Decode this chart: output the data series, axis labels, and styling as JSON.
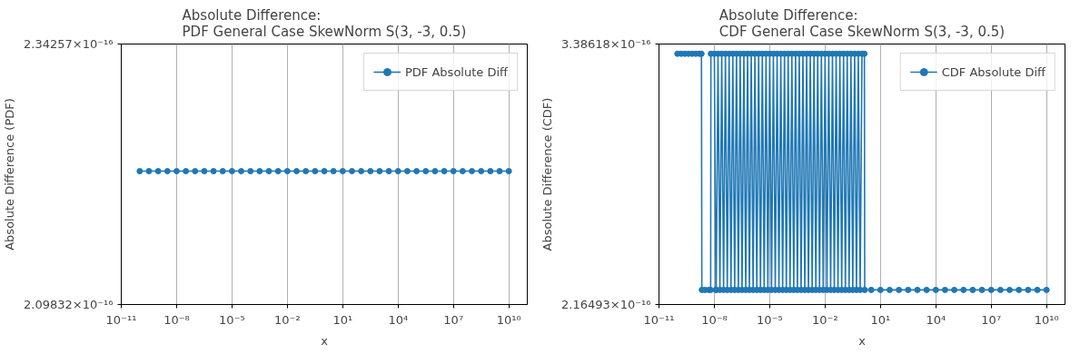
{
  "chart_data": [
    {
      "type": "line",
      "title": "Absolute Difference:\nPDF General Case SkewNorm S(3, -3, 0.5)",
      "xlabel": "x",
      "ylabel": "Absolute Difference (PDF)",
      "log": "xy",
      "grid": "x",
      "legend": "top right",
      "marker": "circle",
      "line_style": "solid",
      "xlim": [
        1e-11,
        100000000000.0
      ],
      "xticks": [
        {
          "value": 1e-11,
          "label": "10⁻¹¹"
        },
        {
          "value": 1e-08,
          "label": "10⁻⁸"
        },
        {
          "value": 1e-05,
          "label": "10⁻⁵"
        },
        {
          "value": 0.01,
          "label": "10⁻²"
        },
        {
          "value": 10,
          "label": "10¹"
        },
        {
          "value": 10000,
          "label": "10⁴"
        },
        {
          "value": 10000000.0,
          "label": "10⁷"
        },
        {
          "value": 10000000000.0,
          "label": "10¹⁰"
        }
      ],
      "ylim": [
        2.09832e-16,
        2.34257e-16
      ],
      "yticks": [
        {
          "value": 2.09832e-16,
          "label": "2.09832×10⁻¹⁶"
        },
        {
          "value": 2.34257e-16,
          "label": "2.34257×10⁻¹⁶"
        }
      ],
      "series": [
        {
          "name": "PDF Absolute Diff",
          "color": "#1f77b4",
          "x": [
            1e-10,
            3.16e-10,
            1e-09,
            3.16e-09,
            1e-08,
            3.16e-08,
            1e-07,
            3.16e-07,
            1e-06,
            3.16e-06,
            1e-05,
            3.16e-05,
            0.0001,
            0.000316,
            0.001,
            0.00316,
            0.01,
            0.0316,
            0.1,
            0.316,
            1,
            3.16,
            10,
            31.6,
            100,
            316,
            1000,
            3160,
            10000,
            31600,
            100000,
            316000,
            1000000,
            3160000,
            10000000.0,
            31600000.0,
            100000000.0,
            316000000.0,
            1000000000.0,
            3160000000.0,
            10000000000.0
          ],
          "values": [
            2.22e-16,
            2.22e-16,
            2.22e-16,
            2.22e-16,
            2.22e-16,
            2.22e-16,
            2.22e-16,
            2.22e-16,
            2.22e-16,
            2.22e-16,
            2.22e-16,
            2.22e-16,
            2.22e-16,
            2.22e-16,
            2.22e-16,
            2.22e-16,
            2.22e-16,
            2.22e-16,
            2.22e-16,
            2.22e-16,
            2.22e-16,
            2.22e-16,
            2.22e-16,
            2.22e-16,
            2.22e-16,
            2.22e-16,
            2.22e-16,
            2.22e-16,
            2.22e-16,
            2.22e-16,
            2.22e-16,
            2.22e-16,
            2.22e-16,
            2.22e-16,
            2.22e-16,
            2.22e-16,
            2.22e-16,
            2.22e-16,
            2.22e-16,
            2.22e-16,
            2.22e-16
          ]
        }
      ]
    },
    {
      "type": "line",
      "title": "Absolute Difference:\nCDF General Case SkewNorm S(3, -3, 0.5)",
      "xlabel": "x",
      "ylabel": "Absolute Difference (CDF)",
      "log": "xy",
      "grid": "x",
      "legend": "top right",
      "marker": "circle",
      "line_style": "solid",
      "xlim": [
        1e-11,
        100000000000.0
      ],
      "xticks": [
        {
          "value": 1e-11,
          "label": "10⁻¹¹"
        },
        {
          "value": 1e-08,
          "label": "10⁻⁸"
        },
        {
          "value": 1e-05,
          "label": "10⁻⁵"
        },
        {
          "value": 0.01,
          "label": "10⁻²"
        },
        {
          "value": 10,
          "label": "10¹"
        },
        {
          "value": 10000,
          "label": "10⁴"
        },
        {
          "value": 10000000.0,
          "label": "10⁷"
        },
        {
          "value": 10000000000.0,
          "label": "10¹⁰"
        }
      ],
      "ylim": [
        2.16493e-16,
        3.38618e-16
      ],
      "yticks": [
        {
          "value": 2.16493e-16,
          "label": "2.16493×10⁻¹⁶"
        },
        {
          "value": 3.38618e-16,
          "label": "3.38618×10⁻¹⁶"
        }
      ],
      "series": [
        {
          "name": "CDF Absolute Diff",
          "color": "#1f77b4",
          "x": [
            1e-10,
            1.58e-10,
            2.51e-10,
            3.98e-10,
            6.31e-10,
            1e-09,
            1.58e-09,
            2e-09,
            2.1e-09,
            3.16e-09,
            5.01e-09,
            6.31e-09,
            6.5e-09,
            1e-08,
            1.2e-08,
            1.26e-08,
            1.58e-08,
            2e-08,
            2.51e-08,
            3.16e-08,
            3.98e-08,
            5.01e-08,
            6.31e-08,
            7.94e-08,
            1e-07,
            1.26e-07,
            1.58e-07,
            2e-07,
            2.51e-07,
            3.16e-07,
            3.98e-07,
            5.01e-07,
            6.31e-07,
            7.94e-07,
            1e-06,
            1.26e-06,
            1.58e-06,
            2e-06,
            2.51e-06,
            3.16e-06,
            3.98e-06,
            5.01e-06,
            6.31e-06,
            7.94e-06,
            1e-05,
            1.26e-05,
            1.58e-05,
            2e-05,
            2.51e-05,
            3.16e-05,
            3.98e-05,
            5.01e-05,
            6.31e-05,
            7.94e-05,
            0.0001,
            0.000126,
            0.000158,
            0.0002,
            0.000251,
            0.000316,
            0.000398,
            0.000501,
            0.000631,
            0.000794,
            0.001,
            0.00126,
            0.00158,
            0.002,
            0.00251,
            0.00316,
            0.00398,
            0.00501,
            0.00631,
            0.00794,
            0.01,
            0.0126,
            0.0158,
            0.02,
            0.0251,
            0.0316,
            0.0398,
            0.0501,
            0.0631,
            0.0794,
            0.1,
            0.126,
            0.158,
            0.2,
            0.251,
            0.316,
            0.398,
            0.501,
            0.631,
            0.794,
            1,
            1.35,
            1.4,
            3.16,
            10,
            31.6,
            100,
            316,
            1000,
            3160,
            10000,
            31600,
            100000,
            316000,
            1000000,
            3160000,
            10000000.0,
            31600000.0,
            100000000.0,
            316000000.0,
            1000000000.0,
            3160000000.0,
            10000000000.0
          ],
          "values": [
            3.33e-16,
            3.33e-16,
            3.33e-16,
            3.33e-16,
            3.33e-16,
            3.33e-16,
            3.33e-16,
            3.33e-16,
            2.22e-16,
            2.22e-16,
            2.22e-16,
            2.22e-16,
            3.33e-16,
            3.33e-16,
            2.22e-16,
            2.22e-16,
            3.33e-16,
            2.22e-16,
            3.33e-16,
            2.22e-16,
            3.33e-16,
            2.22e-16,
            3.33e-16,
            2.22e-16,
            3.33e-16,
            2.22e-16,
            3.33e-16,
            2.22e-16,
            3.33e-16,
            2.22e-16,
            3.33e-16,
            2.22e-16,
            3.33e-16,
            2.22e-16,
            3.33e-16,
            2.22e-16,
            3.33e-16,
            2.22e-16,
            3.33e-16,
            2.22e-16,
            3.33e-16,
            2.22e-16,
            3.33e-16,
            2.22e-16,
            3.33e-16,
            2.22e-16,
            3.33e-16,
            2.22e-16,
            3.33e-16,
            2.22e-16,
            3.33e-16,
            2.22e-16,
            3.33e-16,
            2.22e-16,
            3.33e-16,
            2.22e-16,
            3.33e-16,
            2.22e-16,
            3.33e-16,
            2.22e-16,
            3.33e-16,
            2.22e-16,
            3.33e-16,
            2.22e-16,
            3.33e-16,
            2.22e-16,
            3.33e-16,
            2.22e-16,
            3.33e-16,
            2.22e-16,
            3.33e-16,
            2.22e-16,
            3.33e-16,
            2.22e-16,
            3.33e-16,
            2.22e-16,
            3.33e-16,
            2.22e-16,
            3.33e-16,
            2.22e-16,
            3.33e-16,
            2.22e-16,
            3.33e-16,
            2.22e-16,
            3.33e-16,
            2.22e-16,
            3.33e-16,
            2.22e-16,
            3.33e-16,
            2.22e-16,
            3.33e-16,
            2.22e-16,
            3.33e-16,
            2.22e-16,
            3.33e-16,
            3.33e-16,
            2.22e-16,
            2.22e-16,
            2.22e-16,
            2.22e-16,
            2.22e-16,
            2.22e-16,
            2.22e-16,
            2.22e-16,
            2.22e-16,
            2.22e-16,
            2.22e-16,
            2.22e-16,
            2.22e-16,
            2.22e-16,
            2.22e-16,
            2.22e-16,
            2.22e-16,
            2.22e-16,
            2.22e-16,
            2.22e-16,
            2.22e-16
          ]
        }
      ]
    }
  ]
}
